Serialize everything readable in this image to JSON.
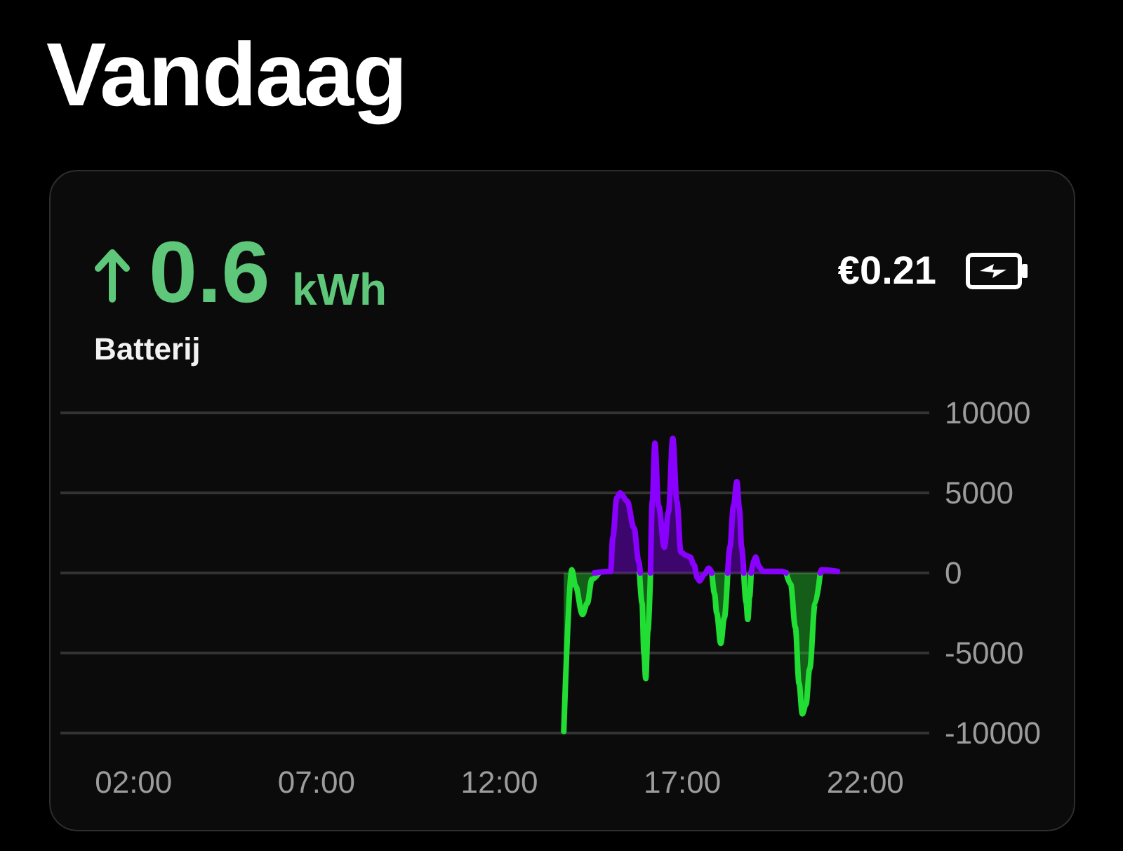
{
  "chart_data": {
    "type": "area",
    "title": "Vandaag",
    "annotations": [
      "0.6",
      "kWh",
      "Batterij",
      "€0.21"
    ],
    "xlim": [
      0,
      23.75
    ],
    "xticks": [
      {
        "value": 2,
        "label": "02:00"
      },
      {
        "value": 7,
        "label": "07:00"
      },
      {
        "value": 12,
        "label": "12:00"
      },
      {
        "value": 17,
        "label": "17:00"
      },
      {
        "value": 22,
        "label": "22:00"
      }
    ],
    "ylim": [
      -10000,
      10000
    ],
    "yticks": [
      -10000,
      -5000,
      0,
      5000,
      10000
    ],
    "grid": "y",
    "marker": "none",
    "series": [
      {
        "color": "#22dd33",
        "x": [
          13.76,
          13.98,
          14.08,
          14.27,
          14.4,
          14.53,
          14.72,
          14.8,
          15.83,
          15.9,
          15.95,
          16.0,
          16.06,
          16.13,
          16.2,
          17.81,
          17.88,
          17.94,
          18.05,
          18.15,
          18.24,
          18.3,
          18.68,
          18.74,
          18.79,
          18.84,
          18.88,
          18.95,
          19.84,
          19.96,
          20.09,
          20.19,
          20.28,
          20.38,
          20.48,
          20.63,
          20.77
        ],
        "values": [
          -9900,
          200,
          -800,
          -2600,
          -1900,
          -400,
          0,
          null,
          0,
          -1900,
          -5000,
          -6600,
          -3600,
          0,
          null,
          0,
          -1300,
          -2500,
          -4400,
          -2800,
          0,
          null,
          0,
          -1800,
          -2900,
          -1500,
          0,
          null,
          0,
          -700,
          -3400,
          -6900,
          -8800,
          -8200,
          -6000,
          -1900,
          0
        ]
      },
      {
        "color": "#8a00ff",
        "x": [
          14.6,
          15.04,
          15.1,
          15.21,
          15.3,
          15.49,
          15.68,
          15.81,
          15.85,
          15.95,
          16.13,
          16.18,
          16.25,
          16.35,
          16.51,
          16.62,
          16.74,
          16.85,
          16.96,
          17.1,
          17.21,
          17.32,
          17.41,
          17.47,
          17.6,
          17.72,
          17.81,
          17.9,
          18.24,
          18.3,
          18.4,
          18.49,
          18.56,
          18.62,
          18.68,
          18.75,
          18.88,
          19.0,
          19.1,
          19.2,
          19.5,
          19.71,
          19.84,
          19.9,
          20.77,
          20.8,
          21.24
        ],
        "values": [
          0,
          100,
          2200,
          4700,
          5000,
          4500,
          2800,
          700,
          0,
          null,
          0,
          4500,
          8100,
          4200,
          1600,
          3800,
          8400,
          4500,
          1300,
          1100,
          1000,
          500,
          -300,
          -500,
          -100,
          300,
          0,
          null,
          0,
          1600,
          4200,
          5700,
          4000,
          1600,
          0,
          null,
          0,
          1000,
          400,
          100,
          100,
          100,
          0,
          null,
          0,
          200,
          100
        ]
      }
    ]
  }
}
